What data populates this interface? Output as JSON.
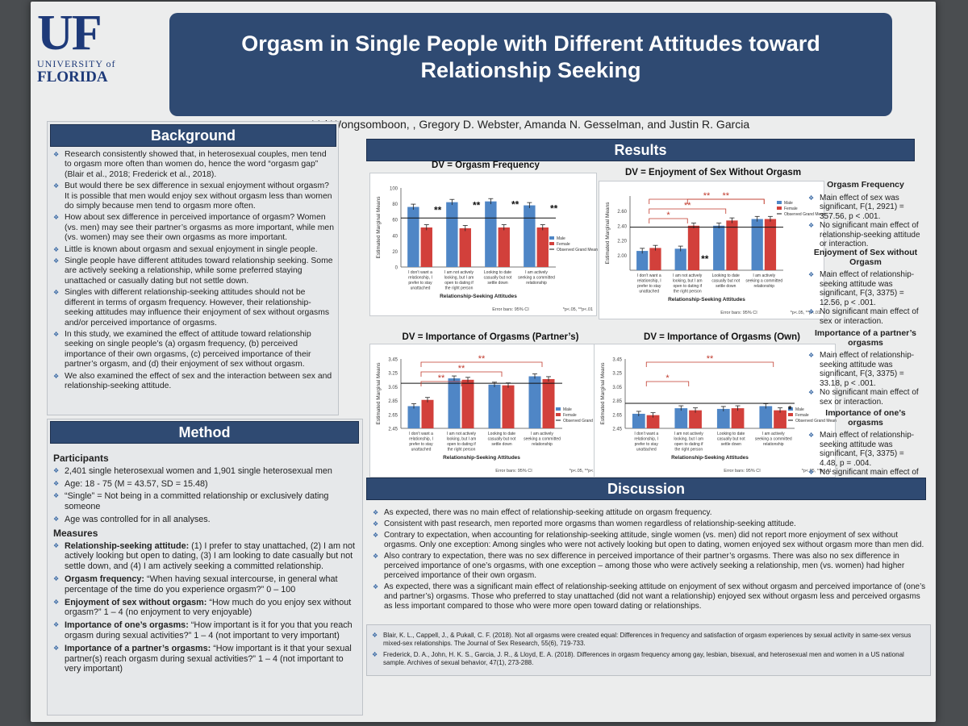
{
  "logo": {
    "big": "UF",
    "line1": "UNIVERSITY of",
    "line2": "FLORIDA"
  },
  "title": "Orgasm in Single People with Different Attitudes toward Relationship Seeking",
  "authors": "Val Wongsomboon, , Gregory D. Webster, Amanda N. Gesselman, and Justin R. Garcia",
  "background": {
    "heading": "Background",
    "bullets": [
      "Research consistently showed that, in heterosexual couples, men tend to orgasm more often than women do, hence the word “orgasm gap” (Blair et al., 2018; Frederick et al., 2018).",
      "But would there be sex difference in sexual enjoyment without orgasm? It is possible that men would enjoy sex without orgasm less than women do simply because men tend to orgasm more often.",
      "How about sex difference in perceived importance of orgasm? Women (vs. men) may see their partner’s orgasms as more important, while men (vs. women) may see their own orgasms as more important.",
      "Little is known about orgasm and sexual enjoyment in single people.",
      "Single people have different attitudes toward relationship seeking. Some are actively seeking a relationship, while some preferred staying unattached or casually dating but not settle down.",
      "Singles with different relationship-seeking attitudes should not be different in terms of orgasm frequency. However, their relationship-seeking attitudes may influence their enjoyment of sex without orgasms and/or perceived importance of orgasms.",
      "In this study, we examined the effect of attitude toward relationship seeking on single people’s (a) orgasm frequency, (b) perceived importance of their own orgasms, (c) perceived importance of their partner’s orgasm, and (d) their enjoyment of sex without orgasm.",
      "We also examined the effect of sex and the interaction between sex and relationship-seeking attitude."
    ]
  },
  "method": {
    "heading": "Method",
    "participants_heading": "Participants",
    "participants": [
      "2,401 single heterosexual women and 1,901 single heterosexual men",
      "Age: 18 - 75 (M = 43.57, SD = 15.48)",
      "“Single” = Not being in a committed relationship or exclusively dating someone",
      "Age was controlled for in all analyses."
    ],
    "measures_heading": "Measures",
    "measures": [
      {
        "term": "Relationship-seeking attitude:",
        "text": " (1) I prefer to stay unattached, (2) I am not actively looking but open to dating, (3) I am looking to date casually but not settle down, and (4) I am actively seeking a committed relationship."
      },
      {
        "term": "Orgasm frequency:",
        "text": " “When having sexual intercourse, in general what percentage of the time do you experience orgasm?” 0 – 100"
      },
      {
        "term": "Enjoyment of sex without orgasm:",
        "text": " “How much do you enjoy sex without orgasm?” 1 – 4 (no enjoyment to very enjoyable)"
      },
      {
        "term": "Importance of one’s orgasms:",
        "text": " “How important is it for you that you reach orgasm during sexual activities?” 1 – 4 (not important to very important)"
      },
      {
        "term": "Importance of a partner’s orgasms:",
        "text": " “How important is it that your sexual partner(s) reach orgasm during sexual activities?” 1 – 4 (not important to very important)"
      }
    ]
  },
  "results": {
    "heading": "Results",
    "stats": [
      {
        "title": "Orgasm Frequency",
        "items": [
          "Main effect of sex was significant, F(1, 2921) = 357.56, p < .001.",
          "No significant main effect of relationship-seeking attitude or interaction."
        ]
      },
      {
        "title": "Enjoyment of Sex without Orgasm",
        "items": [
          "Main effect of relationship-seeking attitude was significant, F(3, 3375) = 12.56, p < .001.",
          "No significant main effect of sex or interaction."
        ]
      },
      {
        "title": "Importance of a partner’s orgasms",
        "items": [
          "Main effect of relationship-seeking attitude was significant, F(3, 3375) = 33.18, p < .001.",
          "No significant main effect of sex or interaction."
        ]
      },
      {
        "title": "Importance of one’s orgasms",
        "items": [
          "Main effect of relationship-seeking attitude was significant, F(3, 3375) = 4.48, p = .004.",
          "No significant main effect of sex or interaction."
        ]
      }
    ]
  },
  "chart_common": {
    "ylabel": "Estimated Marginal Means",
    "xlabel": "Relationship-Seeking Attitudes",
    "errorbars": "Error bars: 95% CI",
    "sig": "*p<.05, **p<.01",
    "legend": [
      "Male",
      "Female",
      "Observed Grand Mean"
    ],
    "male_color": "#4f86c6",
    "female_color": "#d2403b",
    "categories": [
      "I don’t want a relationship, I prefer to stay unattached",
      "I am not actively looking, but I am open to dating if the right person comes along",
      "Looking to date casually but not settle down",
      "I am actively seeking a committed relationship"
    ]
  },
  "chart_data": [
    {
      "type": "bar",
      "title": "DV = Orgasm Frequency",
      "ylim": [
        0,
        100
      ],
      "ticks": [
        0,
        20,
        40,
        60,
        80,
        100
      ],
      "grand_mean": 62,
      "series": [
        {
          "name": "Male",
          "values": [
            76,
            82,
            83,
            78
          ]
        },
        {
          "name": "Female",
          "values": [
            50,
            49,
            50,
            50
          ]
        }
      ]
    },
    {
      "type": "bar",
      "title": "DV = Enjoyment of Sex Without Orgasm",
      "ylim": [
        1.8,
        2.8
      ],
      "ticks": [
        2.0,
        2.2,
        2.4,
        2.6
      ],
      "grand_mean": 2.38,
      "series": [
        {
          "name": "Male",
          "values": [
            2.06,
            2.09,
            2.4,
            2.49
          ]
        },
        {
          "name": "Female",
          "values": [
            2.1,
            2.4,
            2.47,
            2.49
          ]
        }
      ]
    },
    {
      "type": "bar",
      "title": "DV = Importance of Orgasms (Partner’s)",
      "ylim": [
        2.45,
        3.45
      ],
      "ticks": [
        2.45,
        2.65,
        2.85,
        3.05,
        3.25,
        3.45
      ],
      "grand_mean": 3.1,
      "series": [
        {
          "name": "Male",
          "values": [
            2.77,
            3.17,
            3.08,
            3.2
          ]
        },
        {
          "name": "Female",
          "values": [
            2.86,
            3.15,
            3.07,
            3.16
          ]
        }
      ]
    },
    {
      "type": "bar",
      "title": "DV = Importance of Orgasms (Own)",
      "ylim": [
        2.45,
        3.45
      ],
      "ticks": [
        2.45,
        2.65,
        2.85,
        3.05,
        3.25,
        3.45
      ],
      "grand_mean": 2.81,
      "series": [
        {
          "name": "Male",
          "values": [
            2.66,
            2.74,
            2.73,
            2.77
          ]
        },
        {
          "name": "Female",
          "values": [
            2.64,
            2.71,
            2.74,
            2.71
          ]
        }
      ]
    }
  ],
  "discussion": {
    "heading": "Discussion",
    "bullets": [
      "As expected, there was no main effect of relationship-seeking attitude on orgasm frequency.",
      "Consistent with past research, men reported more orgasms than women regardless of relationship-seeking attitude.",
      "Contrary to expectation, when accounting for relationship-seeking attitude, single women (vs. men) did not report more enjoyment of sex without orgasms. Only one exception: Among singles who were not actively looking but open to dating, women enjoyed sex without orgasm more than men did.",
      "Also contrary to expectation, there was no sex difference in perceived importance of their partner’s orgasms. There was also no sex difference in perceived importance of one’s orgasms, with one exception – among those who were actively seeking a relationship, men (vs. women) had higher perceived importance of their own orgasm.",
      "As expected, there was a significant main effect of relationship-seeking attitude on enjoyment of sex without orgasm and perceived importance of (one’s and partner’s) orgasms. Those who preferred to stay unattached (did not want a relationship) enjoyed sex without orgasm less and perceived orgasms as less important compared to those who were more open toward dating or relationships."
    ]
  },
  "references": [
    "Blair, K. L., Cappell, J., & Pukall, C. F. (2018). Not all orgasms were created equal: Differences in frequency and satisfaction of orgasm experiences by sexual activity in same-sex versus mixed-sex relationships. The Journal of Sex Research, 55(6), 719-733.",
    "Frederick, D. A., John, H. K. S., Garcia, J. R., & Lloyd, E. A. (2018). Differences in orgasm frequency among gay, lesbian, bisexual, and heterosexual men and women in a US national sample. Archives of sexual behavior, 47(1), 273-288."
  ]
}
